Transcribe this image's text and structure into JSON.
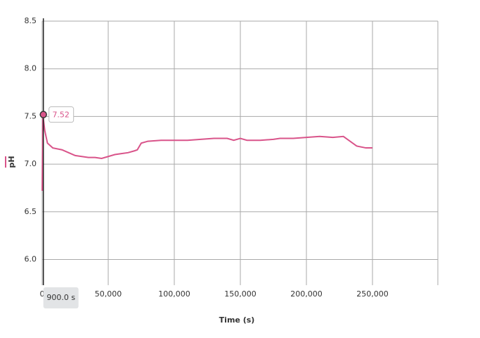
{
  "chart_data": {
    "type": "line",
    "x_label": "Time (s)",
    "y_label": "pH",
    "xlim": [
      0,
      300000
    ],
    "ylim": [
      5.73,
      8.5
    ],
    "xticks": [
      0,
      {
        "value": 50000,
        "label": "50,000"
      },
      {
        "value": 100000,
        "label": "100,000"
      },
      {
        "value": 150000,
        "label": "150,000"
      },
      {
        "value": 200000,
        "label": "200,000"
      },
      {
        "value": 250000,
        "label": "250,000"
      }
    ],
    "yticks": [
      {
        "value": 6,
        "label": "6.0"
      },
      6.5,
      {
        "value": 7,
        "label": "7.0"
      },
      7.5,
      {
        "value": 8,
        "label": "8.0"
      },
      8.5
    ],
    "grid": true,
    "series": [
      {
        "name": "pH",
        "color": "#d9548a",
        "x": [
          0,
          500,
          2000,
          4000,
          8000,
          15000,
          20000,
          25000,
          30000,
          35000,
          40000,
          45000,
          50000,
          55000,
          60000,
          65000,
          70000,
          72000,
          75000,
          80000,
          90000,
          100000,
          110000,
          120000,
          130000,
          140000,
          145000,
          150000,
          155000,
          165000,
          175000,
          180000,
          190000,
          200000,
          210000,
          220000,
          228000,
          232000,
          238000,
          245000,
          250000
        ],
        "values": [
          6.72,
          7.52,
          7.35,
          7.22,
          7.17,
          7.15,
          7.12,
          7.09,
          7.08,
          7.07,
          7.07,
          7.06,
          7.08,
          7.1,
          7.11,
          7.12,
          7.14,
          7.15,
          7.22,
          7.24,
          7.25,
          7.25,
          7.25,
          7.26,
          7.27,
          7.27,
          7.25,
          7.27,
          7.25,
          7.25,
          7.26,
          7.27,
          7.27,
          7.28,
          7.29,
          7.28,
          7.29,
          7.25,
          7.19,
          7.17,
          7.17
        ]
      }
    ],
    "cursor": {
      "x": 900,
      "label": "900.0 s",
      "value": 7.52
    }
  }
}
